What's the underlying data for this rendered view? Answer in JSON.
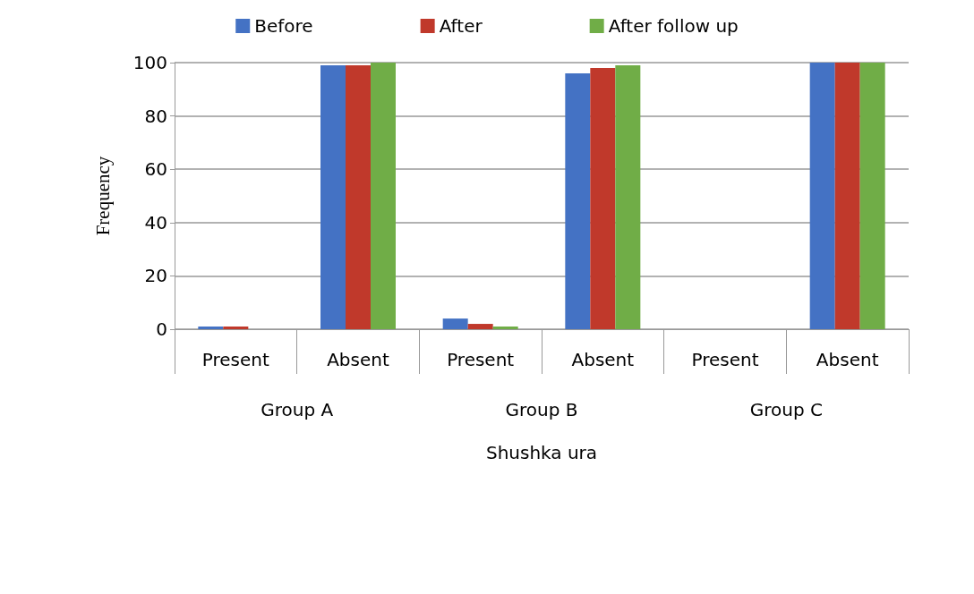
{
  "chart_data": {
    "type": "bar",
    "xlabel": "Shushka ura",
    "ylabel": "Frequency",
    "categories": [
      "Present",
      "Absent",
      "Present",
      "Absent",
      "Present",
      "Absent"
    ],
    "annotations": [
      "Group A",
      "Group B",
      "Group C"
    ],
    "series": [
      {
        "name": "Before",
        "color": "#4472c4",
        "values": [
          1,
          99,
          4,
          96,
          0,
          100
        ]
      },
      {
        "name": "After",
        "color": "#c0392b",
        "values": [
          1,
          99,
          2,
          98,
          0,
          100
        ]
      },
      {
        "name": "After follow up",
        "color": "#70ad47",
        "values": [
          0,
          100,
          1,
          99,
          0,
          100
        ]
      }
    ],
    "ylim": [
      0,
      100
    ],
    "yticks": [
      0,
      20,
      40,
      60,
      80,
      100
    ],
    "grid": "y",
    "legend": "top"
  }
}
